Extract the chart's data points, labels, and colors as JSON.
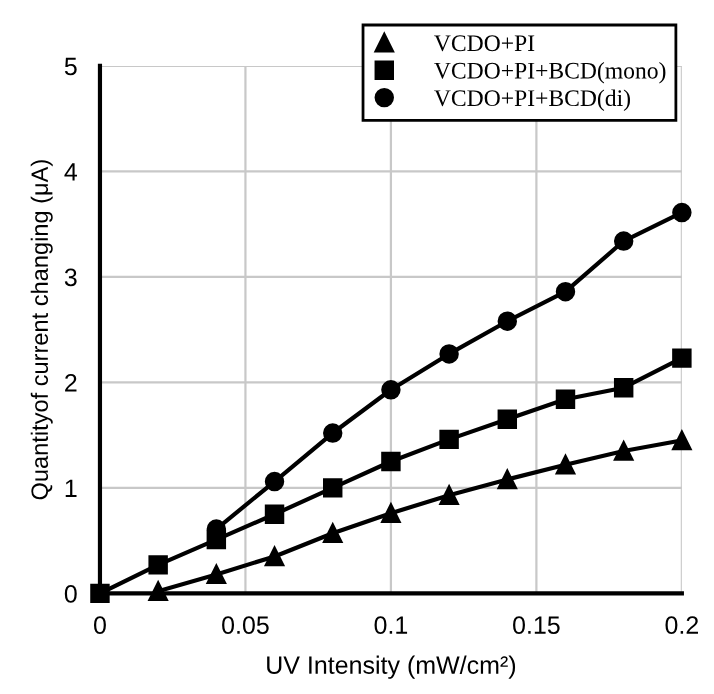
{
  "chart_data": {
    "type": "line",
    "xlabel": "UV Intensity (mW/cm²)",
    "ylabel": "Quantityof current changing (μA)",
    "x": [
      0,
      0.02,
      0.04,
      0.06,
      0.08,
      0.1,
      0.12,
      0.14,
      0.16,
      0.18,
      0.2
    ],
    "series": [
      {
        "name": "VCDO+PI",
        "color": "#000000",
        "marker": "triangle",
        "values": [
          null,
          0.02,
          0.18,
          0.35,
          0.57,
          0.76,
          0.93,
          1.08,
          1.22,
          1.35,
          1.45
        ]
      },
      {
        "name": "VCDO+PI+BCD(mono)",
        "color": "#000000",
        "marker": "square",
        "values": [
          0,
          0.27,
          0.51,
          0.75,
          1.0,
          1.25,
          1.46,
          1.65,
          1.84,
          1.95,
          2.23
        ]
      },
      {
        "name": "VCDO+PI+BCD(di)",
        "color": "#000000",
        "marker": "circle",
        "values": [
          null,
          null,
          0.61,
          1.06,
          1.52,
          1.93,
          2.27,
          2.58,
          2.86,
          3.34,
          3.61
        ]
      }
    ],
    "xlim": [
      0,
      0.2
    ],
    "xticks": [
      0,
      0.05,
      0.1,
      0.15,
      0.2
    ],
    "ylim": [
      0,
      5
    ],
    "yticks": [
      0,
      1,
      2,
      3,
      4,
      5
    ],
    "grid": true,
    "legend": "top right",
    "line_style": "solid"
  }
}
